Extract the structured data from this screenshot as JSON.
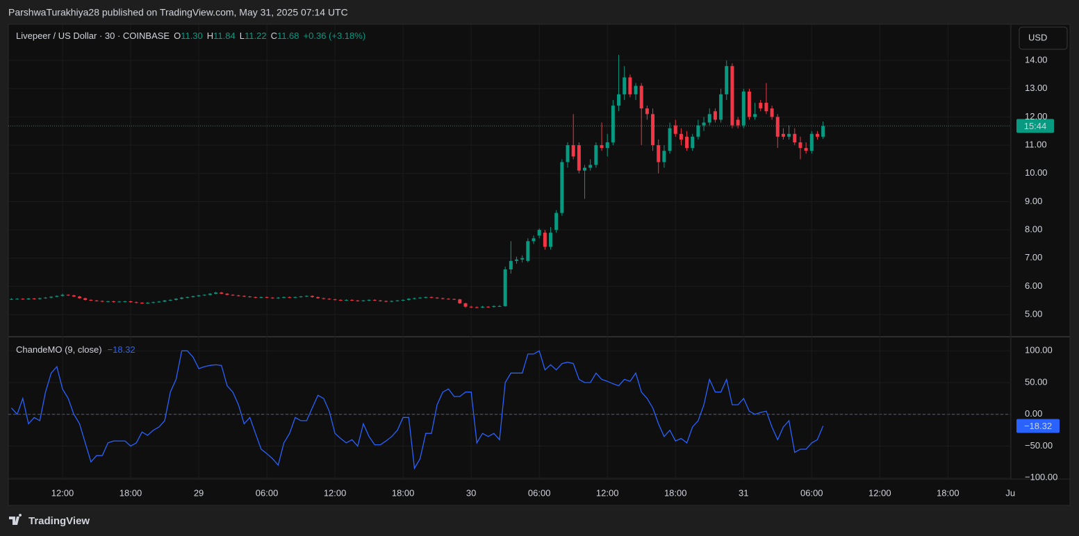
{
  "header": {
    "publisher": "ParshwaTurakhiya28 published on TradingView.com, May 31, 2025 07:14 UTC",
    "currency_button": "USD"
  },
  "footer": {
    "brand": "TradingView"
  },
  "chart_data": [
    {
      "type": "candlestick",
      "title": "Livepeer / US Dollar · 30 · COINBASE",
      "readout": [
        {
          "label": "O",
          "value": "11.30"
        },
        {
          "label": "H",
          "value": "11.84"
        },
        {
          "label": "L",
          "value": "11.22"
        },
        {
          "label": "C",
          "value": "11.68"
        }
      ],
      "change": "+0.36 (+3.18%)",
      "price_badge": "15:44",
      "up_color": "#089981",
      "down_color": "#f23645",
      "ylim": [
        4.24,
        15.28
      ],
      "yticks": [
        {
          "value": 5,
          "label": "5.00"
        },
        {
          "value": 6,
          "label": "6.00"
        },
        {
          "value": 7,
          "label": "7.00"
        },
        {
          "value": 8,
          "label": "8.00"
        },
        {
          "value": 9,
          "label": "9.00"
        },
        {
          "value": 10,
          "label": "10.00"
        },
        {
          "value": 11,
          "label": "11.00"
        },
        {
          "value": 12,
          "label": "12.00"
        },
        {
          "value": 13,
          "label": "13.00"
        },
        {
          "value": 14,
          "label": "14.00"
        }
      ],
      "xlim": [
        -0.55,
        176.1
      ],
      "xticks": [
        {
          "value": 9,
          "label": "12:00"
        },
        {
          "value": 21,
          "label": "18:00"
        },
        {
          "value": 33,
          "label": "29"
        },
        {
          "value": 45,
          "label": "06:00"
        },
        {
          "value": 57,
          "label": "12:00"
        },
        {
          "value": 69,
          "label": "18:00"
        },
        {
          "value": 81,
          "label": "30"
        },
        {
          "value": 93,
          "label": "06:00"
        },
        {
          "value": 105,
          "label": "12:00"
        },
        {
          "value": 117,
          "label": "18:00"
        },
        {
          "value": 129,
          "label": "31"
        },
        {
          "value": 141,
          "label": "06:00"
        },
        {
          "value": 153,
          "label": "12:00"
        },
        {
          "value": 165,
          "label": "18:00"
        },
        {
          "value": 176,
          "label": "Ju"
        }
      ],
      "grid": true,
      "ohlc": [
        [
          5.54,
          5.58,
          5.52,
          5.55
        ],
        [
          5.55,
          5.58,
          5.53,
          5.56
        ],
        [
          5.56,
          5.58,
          5.52,
          5.54
        ],
        [
          5.54,
          5.59,
          5.52,
          5.57
        ],
        [
          5.57,
          5.59,
          5.53,
          5.55
        ],
        [
          5.55,
          5.6,
          5.53,
          5.58
        ],
        [
          5.58,
          5.62,
          5.56,
          5.6
        ],
        [
          5.6,
          5.65,
          5.58,
          5.63
        ],
        [
          5.63,
          5.68,
          5.61,
          5.66
        ],
        [
          5.66,
          5.74,
          5.64,
          5.7
        ],
        [
          5.7,
          5.72,
          5.66,
          5.68
        ],
        [
          5.68,
          5.7,
          5.62,
          5.64
        ],
        [
          5.64,
          5.66,
          5.56,
          5.58
        ],
        [
          5.58,
          5.6,
          5.5,
          5.52
        ],
        [
          5.52,
          5.54,
          5.48,
          5.5
        ],
        [
          5.5,
          5.52,
          5.46,
          5.48
        ],
        [
          5.48,
          5.5,
          5.44,
          5.46
        ],
        [
          5.46,
          5.49,
          5.44,
          5.47
        ],
        [
          5.47,
          5.49,
          5.43,
          5.45
        ],
        [
          5.45,
          5.48,
          5.43,
          5.46
        ],
        [
          5.46,
          5.49,
          5.44,
          5.47
        ],
        [
          5.47,
          5.49,
          5.42,
          5.44
        ],
        [
          5.44,
          5.46,
          5.4,
          5.42
        ],
        [
          5.42,
          5.44,
          5.38,
          5.4
        ],
        [
          5.4,
          5.44,
          5.38,
          5.42
        ],
        [
          5.42,
          5.46,
          5.4,
          5.44
        ],
        [
          5.44,
          5.48,
          5.42,
          5.46
        ],
        [
          5.46,
          5.52,
          5.44,
          5.5
        ],
        [
          5.5,
          5.54,
          5.48,
          5.52
        ],
        [
          5.52,
          5.58,
          5.5,
          5.56
        ],
        [
          5.56,
          5.62,
          5.54,
          5.6
        ],
        [
          5.6,
          5.64,
          5.58,
          5.62
        ],
        [
          5.62,
          5.67,
          5.6,
          5.65
        ],
        [
          5.65,
          5.7,
          5.63,
          5.68
        ],
        [
          5.68,
          5.72,
          5.66,
          5.7
        ],
        [
          5.7,
          5.76,
          5.68,
          5.74
        ],
        [
          5.74,
          5.8,
          5.72,
          5.78
        ],
        [
          5.78,
          5.8,
          5.72,
          5.74
        ],
        [
          5.74,
          5.76,
          5.68,
          5.7
        ],
        [
          5.7,
          5.72,
          5.66,
          5.68
        ],
        [
          5.68,
          5.7,
          5.64,
          5.66
        ],
        [
          5.66,
          5.68,
          5.62,
          5.64
        ],
        [
          5.64,
          5.66,
          5.6,
          5.62
        ],
        [
          5.62,
          5.64,
          5.58,
          5.6
        ],
        [
          5.6,
          5.64,
          5.58,
          5.62
        ],
        [
          5.62,
          5.64,
          5.58,
          5.6
        ],
        [
          5.6,
          5.62,
          5.56,
          5.58
        ],
        [
          5.58,
          5.62,
          5.56,
          5.6
        ],
        [
          5.6,
          5.64,
          5.58,
          5.62
        ],
        [
          5.62,
          5.64,
          5.58,
          5.6
        ],
        [
          5.6,
          5.64,
          5.58,
          5.62
        ],
        [
          5.62,
          5.66,
          5.6,
          5.64
        ],
        [
          5.64,
          5.68,
          5.62,
          5.66
        ],
        [
          5.66,
          5.68,
          5.6,
          5.62
        ],
        [
          5.62,
          5.64,
          5.56,
          5.58
        ],
        [
          5.58,
          5.6,
          5.54,
          5.56
        ],
        [
          5.56,
          5.58,
          5.52,
          5.54
        ],
        [
          5.54,
          5.56,
          5.5,
          5.52
        ],
        [
          5.52,
          5.54,
          5.48,
          5.5
        ],
        [
          5.5,
          5.54,
          5.48,
          5.52
        ],
        [
          5.52,
          5.54,
          5.48,
          5.5
        ],
        [
          5.5,
          5.52,
          5.46,
          5.48
        ],
        [
          5.48,
          5.52,
          5.46,
          5.5
        ],
        [
          5.5,
          5.54,
          5.48,
          5.52
        ],
        [
          5.52,
          5.54,
          5.48,
          5.5
        ],
        [
          5.5,
          5.52,
          5.46,
          5.48
        ],
        [
          5.48,
          5.5,
          5.44,
          5.46
        ],
        [
          5.46,
          5.5,
          5.44,
          5.48
        ],
        [
          5.48,
          5.52,
          5.46,
          5.5
        ],
        [
          5.5,
          5.54,
          5.48,
          5.52
        ],
        [
          5.52,
          5.58,
          5.5,
          5.56
        ],
        [
          5.56,
          5.6,
          5.54,
          5.58
        ],
        [
          5.58,
          5.62,
          5.56,
          5.6
        ],
        [
          5.6,
          5.64,
          5.58,
          5.62
        ],
        [
          5.62,
          5.64,
          5.58,
          5.6
        ],
        [
          5.6,
          5.62,
          5.56,
          5.58
        ],
        [
          5.58,
          5.6,
          5.54,
          5.56
        ],
        [
          5.56,
          5.58,
          5.53,
          5.55
        ],
        [
          5.55,
          5.57,
          5.52,
          5.54
        ],
        [
          5.54,
          5.56,
          5.38,
          5.4
        ],
        [
          5.4,
          5.42,
          5.24,
          5.28
        ],
        [
          5.28,
          5.31,
          5.23,
          5.26
        ],
        [
          5.26,
          5.29,
          5.22,
          5.25
        ],
        [
          5.25,
          5.31,
          5.23,
          5.28
        ],
        [
          5.28,
          5.3,
          5.24,
          5.27
        ],
        [
          5.27,
          5.33,
          5.25,
          5.3
        ],
        [
          5.3,
          5.34,
          5.27,
          5.3
        ],
        [
          5.3,
          6.7,
          5.28,
          6.6
        ],
        [
          6.6,
          7.6,
          6.45,
          6.9
        ],
        [
          6.9,
          7.05,
          6.8,
          6.95
        ],
        [
          6.95,
          7.1,
          6.85,
          7.0
        ],
        [
          6.9,
          7.7,
          6.85,
          7.6
        ],
        [
          7.6,
          7.8,
          7.5,
          7.7
        ],
        [
          7.8,
          8.05,
          7.7,
          8.0
        ],
        [
          7.9,
          8.0,
          7.3,
          7.4
        ],
        [
          7.4,
          8.1,
          7.3,
          7.9
        ],
        [
          8.0,
          8.7,
          7.9,
          8.6
        ],
        [
          8.6,
          10.5,
          8.5,
          10.4
        ],
        [
          10.4,
          11.1,
          10.2,
          11.0
        ],
        [
          11.0,
          12.1,
          10.5,
          10.6
        ],
        [
          11.0,
          11.1,
          10.0,
          10.1
        ],
        [
          10.1,
          10.3,
          9.1,
          10.2
        ],
        [
          10.2,
          10.5,
          10.1,
          10.3
        ],
        [
          10.3,
          11.1,
          10.2,
          11.0
        ],
        [
          11.0,
          11.8,
          10.8,
          10.9
        ],
        [
          10.9,
          11.4,
          10.6,
          11.1
        ],
        [
          11.1,
          12.6,
          11.0,
          12.4
        ],
        [
          12.4,
          14.2,
          12.2,
          12.8
        ],
        [
          12.8,
          13.8,
          12.6,
          13.4
        ],
        [
          13.4,
          13.5,
          12.7,
          12.8
        ],
        [
          12.8,
          13.2,
          12.6,
          13.1
        ],
        [
          13.1,
          13.2,
          11.0,
          12.3
        ],
        [
          12.3,
          12.4,
          11.9,
          12.1
        ],
        [
          12.1,
          12.3,
          10.8,
          11.0
        ],
        [
          11.0,
          11.2,
          10.0,
          10.4
        ],
        [
          10.4,
          11.0,
          10.2,
          10.8
        ],
        [
          10.8,
          11.8,
          10.7,
          11.6
        ],
        [
          11.7,
          11.9,
          11.3,
          11.4
        ],
        [
          11.4,
          11.6,
          11.0,
          11.2
        ],
        [
          11.3,
          11.5,
          10.8,
          10.9
        ],
        [
          10.9,
          11.4,
          10.8,
          11.3
        ],
        [
          11.3,
          11.9,
          11.2,
          11.7
        ],
        [
          11.7,
          12.0,
          11.5,
          11.8
        ],
        [
          11.8,
          12.3,
          11.7,
          12.1
        ],
        [
          12.2,
          12.3,
          11.8,
          11.9
        ],
        [
          11.9,
          13.0,
          11.8,
          12.8
        ],
        [
          12.8,
          14.0,
          12.6,
          13.8
        ],
        [
          13.8,
          13.9,
          11.6,
          11.7
        ],
        [
          11.9,
          12.0,
          11.6,
          11.7
        ],
        [
          11.7,
          13.0,
          11.6,
          12.9
        ],
        [
          12.9,
          13.0,
          11.9,
          12.0
        ],
        [
          12.0,
          12.5,
          11.9,
          12.1
        ],
        [
          12.5,
          12.6,
          12.2,
          12.3
        ],
        [
          12.5,
          13.2,
          12.1,
          12.2
        ],
        [
          12.3,
          12.4,
          11.9,
          12.0
        ],
        [
          12.0,
          12.1,
          10.9,
          11.3
        ],
        [
          11.4,
          11.6,
          11.2,
          11.3
        ],
        [
          11.3,
          11.7,
          11.2,
          11.4
        ],
        [
          11.4,
          11.6,
          11.0,
          11.1
        ],
        [
          11.1,
          11.3,
          10.5,
          10.9
        ],
        [
          10.9,
          11.1,
          10.7,
          10.8
        ],
        [
          10.8,
          11.5,
          10.7,
          11.4
        ],
        [
          11.4,
          11.5,
          11.2,
          11.3
        ],
        [
          11.3,
          11.84,
          11.22,
          11.68
        ]
      ]
    },
    {
      "type": "line",
      "title": "ChandeMO (9, close)",
      "last_label": "−18.32",
      "color": "#2962ff",
      "ylim": [
        -102,
        120
      ],
      "yticks": [
        {
          "value": 100,
          "label": "100.00"
        },
        {
          "value": 50,
          "label": "50.00"
        },
        {
          "value": 0,
          "label": "0.00"
        },
        {
          "value": -50,
          "label": "−50.00"
        },
        {
          "value": -100,
          "label": "−100.00"
        }
      ],
      "values": [
        10,
        0,
        25,
        -15,
        -5,
        -10,
        35,
        65,
        75,
        40,
        25,
        0,
        -15,
        -45,
        -75,
        -65,
        -65,
        -45,
        -42,
        -42,
        -42,
        -50,
        -45,
        -28,
        -33,
        -25,
        -20,
        -10,
        35,
        55,
        100,
        100,
        90,
        72,
        75,
        77,
        78,
        77,
        45,
        35,
        15,
        -15,
        -5,
        -30,
        -55,
        -62,
        -70,
        -80,
        -45,
        -30,
        -5,
        -10,
        -10,
        10,
        30,
        25,
        5,
        -30,
        -38,
        -45,
        -40,
        -50,
        -15,
        -35,
        -48,
        -48,
        -42,
        -35,
        -25,
        -5,
        -5,
        -85,
        -70,
        -30,
        -30,
        15,
        35,
        40,
        28,
        28,
        35,
        35,
        -45,
        -30,
        -35,
        -30,
        -40,
        50,
        65,
        65,
        65,
        95,
        95,
        100,
        70,
        78,
        70,
        80,
        82,
        80,
        55,
        50,
        50,
        65,
        55,
        52,
        48,
        45,
        55,
        52,
        65,
        35,
        25,
        10,
        -15,
        -35,
        -25,
        -42,
        -38,
        -45,
        -20,
        -10,
        15,
        55,
        35,
        35,
        55,
        15,
        15,
        25,
        5,
        0,
        3,
        5,
        -20,
        -40,
        -20,
        -10,
        -60,
        -55,
        -55,
        -45,
        -40,
        -18.32
      ]
    }
  ]
}
